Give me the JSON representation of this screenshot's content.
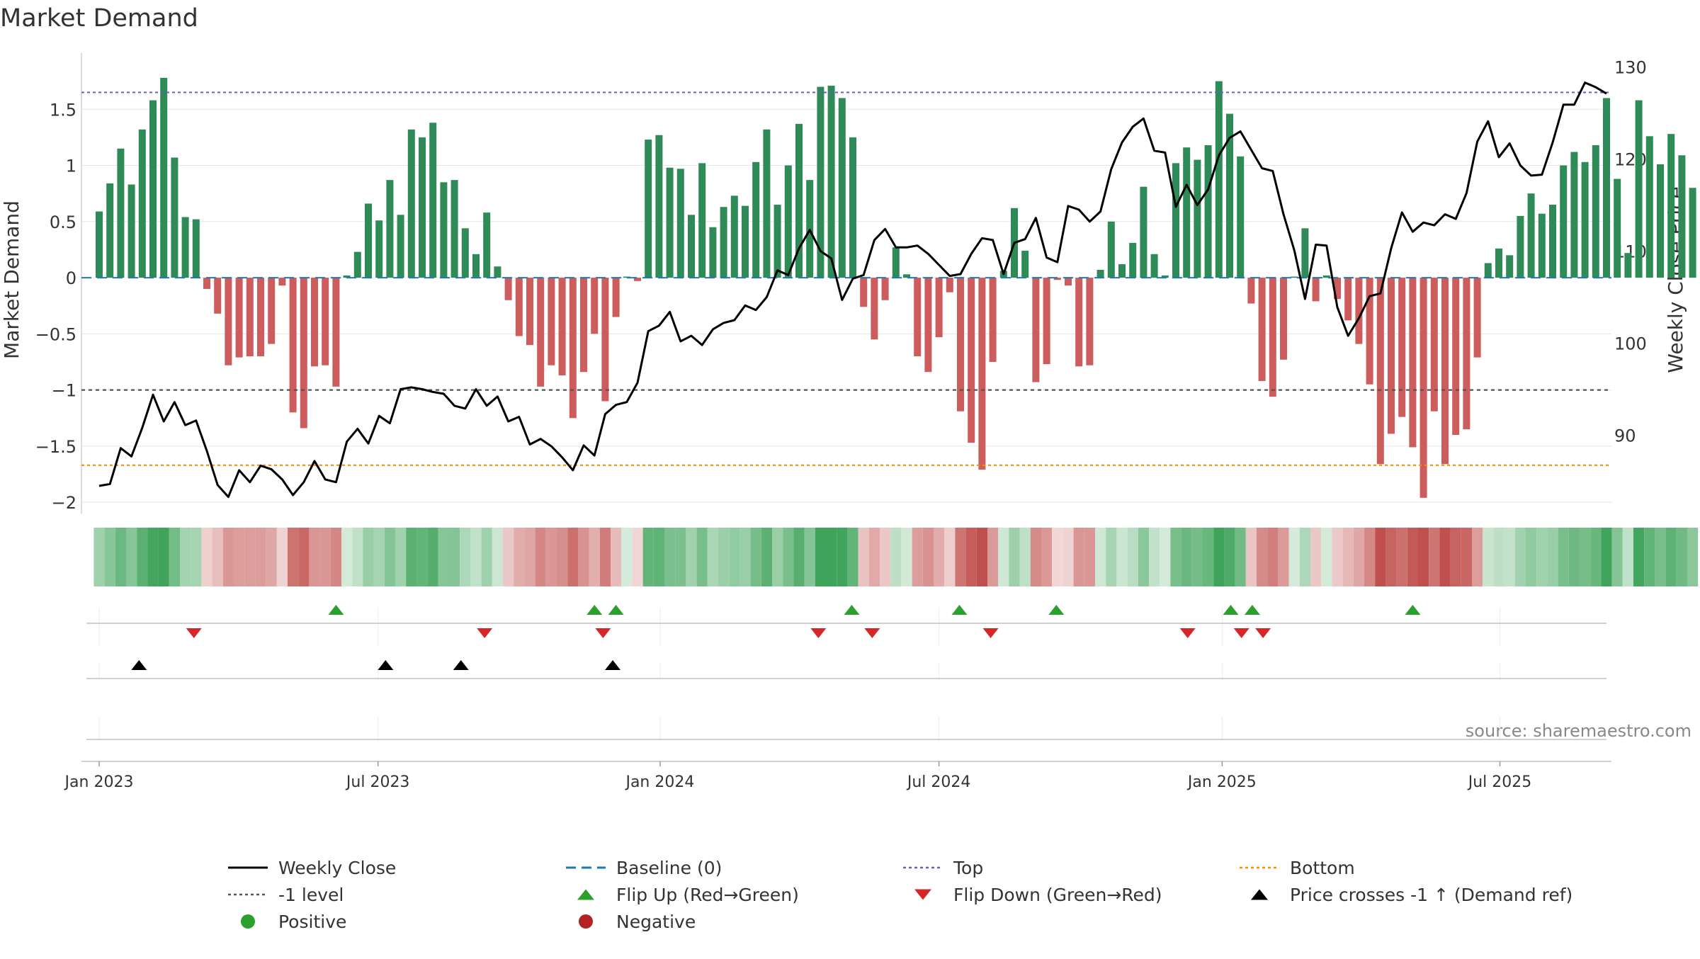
{
  "chart_data": {
    "type": "bar",
    "title": "Market Demand",
    "ylabel_left": "Market Demand",
    "ylabel_right": "Weekly Close Price",
    "source_note": "source: sharemaestro.com",
    "ylim_left": [
      -2.1,
      2.0
    ],
    "ylim_right": [
      81.5,
      131.5
    ],
    "yticks_left": [
      1.5,
      1,
      0.5,
      0,
      -0.5,
      -1,
      -1.5,
      -2
    ],
    "yticks_left_labels": [
      "1.5",
      "1",
      "0.5",
      "0",
      "−0.5",
      "−1",
      "−1.5",
      "−2"
    ],
    "yticks_right": [
      130,
      120,
      110,
      100,
      90
    ],
    "yticks_right_labels": [
      "130",
      "120",
      "110",
      "100",
      "90"
    ],
    "x_start": "2023-01-02",
    "x_ticks": [
      {
        "label": "Jan 2023",
        "week": 0
      },
      {
        "label": "Jul 2023",
        "week": 25.9
      },
      {
        "label": "Jan 2024",
        "week": 52.1
      },
      {
        "label": "Jul 2024",
        "week": 78
      },
      {
        "label": "Jan 2025",
        "week": 104.3
      },
      {
        "label": "Jul 2025",
        "week": 130.1
      }
    ],
    "reference_lines": {
      "top": 1.65,
      "bottom": -1.67,
      "minus_one": -1,
      "baseline": 0
    },
    "demand": [
      0.59,
      0.84,
      1.15,
      0.83,
      1.32,
      1.58,
      1.78,
      1.07,
      0.54,
      0.52,
      -0.1,
      -0.32,
      -0.78,
      -0.71,
      -0.7,
      -0.7,
      -0.59,
      -0.07,
      -1.2,
      -1.34,
      -0.79,
      -0.78,
      -0.97,
      0.02,
      0.23,
      0.66,
      0.51,
      0.87,
      0.56,
      1.32,
      1.25,
      1.38,
      0.85,
      0.87,
      0.44,
      0.21,
      0.58,
      0.1,
      -0.2,
      -0.52,
      -0.6,
      -0.97,
      -0.78,
      -0.87,
      -1.25,
      -0.84,
      -0.5,
      -1.1,
      -0.35,
      0.01,
      -0.03,
      1.23,
      1.27,
      0.98,
      0.97,
      0.56,
      1.02,
      0.45,
      0.63,
      0.73,
      0.64,
      1.03,
      1.32,
      0.65,
      1.0,
      1.37,
      0.87,
      1.7,
      1.71,
      1.6,
      1.25,
      -0.26,
      -0.55,
      -0.2,
      0.27,
      0.03,
      -0.7,
      -0.84,
      -0.53,
      -0.13,
      -1.19,
      -1.47,
      -1.71,
      -0.75,
      0.06,
      0.62,
      0.24,
      -0.93,
      -0.77,
      -0.02,
      -0.07,
      -0.79,
      -0.78,
      0.07,
      0.5,
      0.12,
      0.31,
      0.81,
      0.21,
      0.02,
      1.02,
      1.16,
      1.05,
      1.18,
      1.75,
      1.46,
      1.08,
      -0.23,
      -0.92,
      -1.06,
      -0.73,
      0.01,
      0.44,
      -0.21,
      0.02,
      -0.19,
      -0.38,
      -0.59,
      -0.95,
      -1.66,
      -1.39,
      -1.24,
      -1.51,
      -1.96,
      -1.19,
      -1.66,
      -1.4,
      -1.35,
      -0.71,
      0.13,
      0.26,
      0.2,
      0.55,
      0.75,
      0.57,
      0.65,
      1.0,
      1.12,
      1.03,
      1.18,
      1.6,
      0.88,
      0.22,
      1.58,
      1.26,
      1.01,
      1.28,
      1.09,
      0.8
    ],
    "price": [
      84.5,
      84.7,
      88.6,
      87.7,
      90.8,
      94.4,
      91.5,
      93.6,
      91.1,
      91.6,
      88.3,
      84.6,
      83.3,
      86.2,
      84.9,
      86.7,
      86.3,
      85.2,
      83.5,
      84.9,
      87.2,
      85.2,
      84.9,
      89.3,
      90.7,
      89.1,
      92.1,
      91.3,
      95.0,
      95.2,
      95.0,
      94.7,
      94.5,
      93.2,
      92.9,
      95.0,
      93.2,
      94.2,
      91.5,
      92.0,
      89.0,
      89.6,
      88.8,
      87.6,
      86.2,
      88.9,
      87.8,
      92.3,
      93.3,
      93.6,
      95.7,
      101.3,
      101.9,
      103.4,
      100.2,
      100.8,
      99.8,
      101.5,
      102.2,
      102.5,
      104.1,
      103.6,
      105.0,
      107.9,
      107.4,
      110.3,
      112.3,
      110.0,
      109.2,
      104.7,
      107.0,
      107.4,
      111.2,
      112.4,
      110.4,
      110.4,
      110.6,
      109.7,
      108.5,
      107.3,
      107.5,
      109.7,
      111.4,
      111.2,
      107.5,
      110.9,
      111.3,
      113.6,
      109.3,
      108.8,
      114.9,
      114.5,
      113.2,
      114.3,
      118.9,
      121.8,
      123.5,
      124.4,
      120.9,
      120.7,
      114.8,
      117.2,
      115.0,
      116.7,
      120.4,
      122.3,
      123.0,
      121.0,
      119.0,
      118.7,
      114.0,
      110.1,
      104.8,
      110.7,
      110.6,
      103.9,
      100.8,
      102.7,
      105.1,
      105.4,
      110.3,
      114.2,
      112.1,
      113.1,
      112.8,
      114.0,
      113.5,
      116.3,
      121.9,
      124.1,
      120.2,
      121.7,
      119.3,
      118.2,
      118.3,
      121.8,
      125.9,
      125.9,
      128.3,
      127.8,
      127.1
    ],
    "flip_up_weeks": [
      22.0,
      46.0,
      48.0,
      69.9,
      79.9,
      88.9,
      105.1,
      107.1,
      122.0
    ],
    "flip_down_weeks": [
      8.8,
      35.8,
      46.8,
      66.8,
      71.8,
      82.8,
      101.1,
      106.1,
      108.1
    ],
    "price_cross_weeks": [
      3.7,
      26.6,
      33.6,
      47.7
    ],
    "legend": [
      {
        "label": "Weekly Close",
        "kind": "line-solid",
        "color": "#000000"
      },
      {
        "label": "Baseline (0)",
        "kind": "line-dash",
        "color": "#1f77b4"
      },
      {
        "label": "Top",
        "kind": "line-dot",
        "color": "#6a5acd"
      },
      {
        "label": "Bottom",
        "kind": "line-dot",
        "color": "#ff8c00"
      },
      {
        "label": "-1 level",
        "kind": "line-dot",
        "color": "#555555"
      },
      {
        "label": "Flip Up (Red→Green)",
        "kind": "tri-up",
        "color": "#2ca02c"
      },
      {
        "label": "Flip Down (Green→Red)",
        "kind": "tri-down",
        "color": "#d62728"
      },
      {
        "label": "Price crosses -1 ↑ (Demand ref)",
        "kind": "tri-up",
        "color": "#000000"
      },
      {
        "label": "Positive",
        "kind": "dot",
        "color": "#2ca02c"
      },
      {
        "label": "Negative",
        "kind": "dot",
        "color": "#b22222"
      }
    ],
    "colors": {
      "positive_bar": "#2e8b57",
      "negative_bar": "#cd5c5c",
      "flip_up": "#2ca02c",
      "flip_down": "#d62728",
      "grid": "#e6e6e6",
      "axis": "#d0d0d0",
      "text": "#333333",
      "source": "#888888"
    }
  }
}
